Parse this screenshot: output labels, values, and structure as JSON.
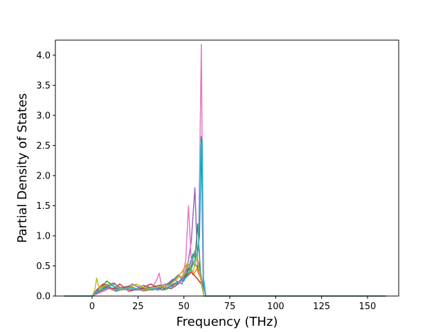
{
  "chart_data": {
    "type": "line",
    "xlabel": "Frequency (THz)",
    "ylabel": "Partial Density of States",
    "xlim": [
      -20,
      167
    ],
    "ylim": [
      0,
      4.25
    ],
    "xticks": [
      0,
      25,
      50,
      75,
      100,
      125,
      150
    ],
    "yticks": [
      0.0,
      0.5,
      1.0,
      1.5,
      2.0,
      2.5,
      3.0,
      3.5,
      4.0
    ],
    "xtick_labels": [
      "0",
      "25",
      "50",
      "75",
      "100",
      "125",
      "150"
    ],
    "ytick_labels": [
      "0.0",
      "0.5",
      "1.0",
      "1.5",
      "2.0",
      "2.5",
      "3.0",
      "3.5",
      "4.0"
    ],
    "grid": false,
    "legend": "none",
    "series": [
      {
        "color": "#1f77b4",
        "points": [
          [
            -15,
            0
          ],
          [
            0,
            0
          ],
          [
            2,
            0.05
          ],
          [
            5,
            0.12
          ],
          [
            9,
            0.15
          ],
          [
            13,
            0.08
          ],
          [
            18,
            0.12
          ],
          [
            24,
            0.1
          ],
          [
            30,
            0.14
          ],
          [
            36,
            0.1
          ],
          [
            42,
            0.2
          ],
          [
            47,
            0.35
          ],
          [
            50,
            0.25
          ],
          [
            53,
            0.5
          ],
          [
            55,
            0.7
          ],
          [
            57,
            0.6
          ],
          [
            58.5,
            1.0
          ],
          [
            59.5,
            2.65
          ],
          [
            60.5,
            0.2
          ],
          [
            62,
            0
          ],
          [
            160,
            0
          ]
        ]
      },
      {
        "color": "#ff7f0e",
        "points": [
          [
            -15,
            0
          ],
          [
            0,
            0
          ],
          [
            3,
            0.08
          ],
          [
            7,
            0.2
          ],
          [
            10,
            0.12
          ],
          [
            16,
            0.1
          ],
          [
            22,
            0.15
          ],
          [
            28,
            0.08
          ],
          [
            34,
            0.12
          ],
          [
            40,
            0.1
          ],
          [
            46,
            0.3
          ],
          [
            49,
            0.4
          ],
          [
            52,
            0.55
          ],
          [
            55,
            0.35
          ],
          [
            57,
            0.45
          ],
          [
            59,
            0.3
          ],
          [
            61,
            0
          ],
          [
            160,
            0
          ]
        ]
      },
      {
        "color": "#2ca02c",
        "points": [
          [
            -15,
            0
          ],
          [
            0,
            0
          ],
          [
            4,
            0.1
          ],
          [
            8,
            0.25
          ],
          [
            12,
            0.15
          ],
          [
            17,
            0.12
          ],
          [
            23,
            0.18
          ],
          [
            29,
            0.1
          ],
          [
            35,
            0.15
          ],
          [
            41,
            0.12
          ],
          [
            46,
            0.22
          ],
          [
            50,
            0.3
          ],
          [
            53,
            0.45
          ],
          [
            56,
            0.6
          ],
          [
            57.5,
            1.2
          ],
          [
            59,
            0.4
          ],
          [
            61,
            0
          ],
          [
            160,
            0
          ]
        ]
      },
      {
        "color": "#d62728",
        "points": [
          [
            -15,
            0
          ],
          [
            0,
            0
          ],
          [
            3,
            0.12
          ],
          [
            6,
            0.2
          ],
          [
            11,
            0.1
          ],
          [
            15,
            0.2
          ],
          [
            20,
            0.08
          ],
          [
            26,
            0.12
          ],
          [
            32,
            0.2
          ],
          [
            38,
            0.1
          ],
          [
            44,
            0.18
          ],
          [
            48,
            0.25
          ],
          [
            51,
            0.3
          ],
          [
            54,
            0.4
          ],
          [
            57,
            0.3
          ],
          [
            59.5,
            0.2
          ],
          [
            61,
            0
          ],
          [
            160,
            0
          ]
        ]
      },
      {
        "color": "#9467bd",
        "points": [
          [
            -15,
            0
          ],
          [
            0,
            0
          ],
          [
            2,
            0.08
          ],
          [
            8,
            0.18
          ],
          [
            12,
            0.22
          ],
          [
            16,
            0.1
          ],
          [
            22,
            0.2
          ],
          [
            27,
            0.12
          ],
          [
            33,
            0.1
          ],
          [
            39,
            0.15
          ],
          [
            44,
            0.28
          ],
          [
            49,
            0.2
          ],
          [
            52,
            0.5
          ],
          [
            54,
            0.9
          ],
          [
            56,
            1.8
          ],
          [
            57.5,
            0.5
          ],
          [
            59,
            0.3
          ],
          [
            61,
            0
          ],
          [
            160,
            0
          ]
        ]
      },
      {
        "color": "#8c564b",
        "points": [
          [
            -15,
            0
          ],
          [
            0,
            0
          ],
          [
            3,
            0.06
          ],
          [
            9,
            0.14
          ],
          [
            14,
            0.12
          ],
          [
            19,
            0.16
          ],
          [
            25,
            0.1
          ],
          [
            31,
            0.14
          ],
          [
            37,
            0.18
          ],
          [
            43,
            0.12
          ],
          [
            47,
            0.2
          ],
          [
            50,
            0.3
          ],
          [
            53,
            0.4
          ],
          [
            55,
            0.55
          ],
          [
            57,
            0.5
          ],
          [
            59,
            0.35
          ],
          [
            61,
            0
          ],
          [
            160,
            0
          ]
        ]
      },
      {
        "color": "#e377c2",
        "points": [
          [
            -15,
            0
          ],
          [
            0,
            0
          ],
          [
            4,
            0.05
          ],
          [
            9,
            0.12
          ],
          [
            14,
            0.1
          ],
          [
            20,
            0.14
          ],
          [
            26,
            0.1
          ],
          [
            32,
            0.12
          ],
          [
            35,
            0.25
          ],
          [
            36.5,
            0.38
          ],
          [
            38,
            0.15
          ],
          [
            44,
            0.15
          ],
          [
            49,
            0.25
          ],
          [
            51,
            0.6
          ],
          [
            52.5,
            1.5
          ],
          [
            54,
            0.6
          ],
          [
            56,
            0.5
          ],
          [
            58,
            0.8
          ],
          [
            59.5,
            4.18
          ],
          [
            60.5,
            0.3
          ],
          [
            62,
            0
          ],
          [
            160,
            0
          ]
        ]
      },
      {
        "color": "#7f7f7f",
        "points": [
          [
            -15,
            0
          ],
          [
            0,
            0
          ],
          [
            3,
            0.1
          ],
          [
            7,
            0.15
          ],
          [
            12,
            0.2
          ],
          [
            17,
            0.12
          ],
          [
            23,
            0.1
          ],
          [
            28,
            0.18
          ],
          [
            34,
            0.12
          ],
          [
            40,
            0.2
          ],
          [
            45,
            0.15
          ],
          [
            49,
            0.3
          ],
          [
            52,
            0.45
          ],
          [
            54,
            0.5
          ],
          [
            56,
            0.75
          ],
          [
            58,
            0.55
          ],
          [
            60,
            0.2
          ],
          [
            61,
            0
          ],
          [
            160,
            0
          ]
        ]
      },
      {
        "color": "#bcbd22",
        "points": [
          [
            -15,
            0
          ],
          [
            0,
            0
          ],
          [
            1.5,
            0.1
          ],
          [
            2.5,
            0.3
          ],
          [
            4,
            0.1
          ],
          [
            8,
            0.2
          ],
          [
            13,
            0.15
          ],
          [
            18,
            0.1
          ],
          [
            24,
            0.2
          ],
          [
            30,
            0.12
          ],
          [
            36,
            0.15
          ],
          [
            42,
            0.18
          ],
          [
            47,
            0.3
          ],
          [
            50,
            0.35
          ],
          [
            52,
            0.55
          ],
          [
            55,
            0.4
          ],
          [
            57,
            0.65
          ],
          [
            59,
            0.3
          ],
          [
            61,
            0
          ],
          [
            160,
            0
          ]
        ]
      },
      {
        "color": "#17becf",
        "points": [
          [
            -15,
            0
          ],
          [
            0,
            0
          ],
          [
            3,
            0.08
          ],
          [
            7,
            0.12
          ],
          [
            11,
            0.18
          ],
          [
            16,
            0.1
          ],
          [
            21,
            0.14
          ],
          [
            27,
            0.1
          ],
          [
            33,
            0.12
          ],
          [
            39,
            0.1
          ],
          [
            44,
            0.2
          ],
          [
            48,
            0.25
          ],
          [
            51,
            0.3
          ],
          [
            54,
            0.45
          ],
          [
            56,
            0.6
          ],
          [
            58,
            0.8
          ],
          [
            59.3,
            2.5
          ],
          [
            60,
            2.6
          ],
          [
            60.7,
            0.3
          ],
          [
            62,
            0
          ],
          [
            160,
            0
          ]
        ]
      }
    ]
  }
}
